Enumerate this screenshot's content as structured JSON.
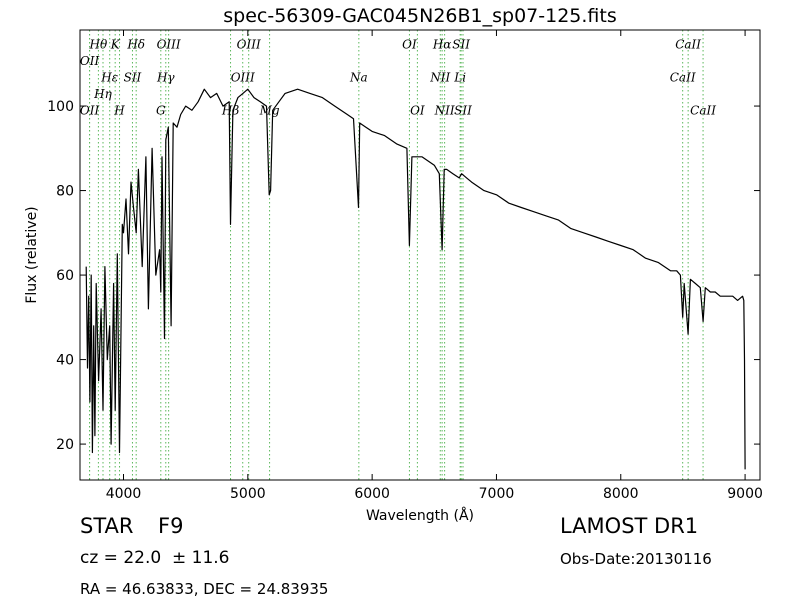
{
  "chart_data": {
    "type": "line",
    "title": "spec-56309-GAC045N26B1_sp07-125.fits",
    "xlabel": "Wavelength (Å)",
    "ylabel": "Flux (relative)",
    "xlim": [
      3650,
      9120
    ],
    "ylim": [
      11.5,
      118
    ],
    "xticks": [
      4000,
      5000,
      6000,
      7000,
      8000,
      9000
    ],
    "yticks": [
      20,
      40,
      60,
      80,
      100
    ],
    "grid": false,
    "legend": "none",
    "series": [
      {
        "color": "#000000",
        "x": [
          3700,
          3710,
          3720,
          3730,
          3740,
          3750,
          3760,
          3770,
          3780,
          3800,
          3820,
          3835,
          3850,
          3870,
          3889,
          3900,
          3920,
          3933,
          3950,
          3968,
          3990,
          4000,
          4020,
          4040,
          4060,
          4080,
          4102,
          4120,
          4150,
          4180,
          4200,
          4230,
          4260,
          4290,
          4300,
          4310,
          4330,
          4340,
          4360,
          4383,
          4400,
          4430,
          4460,
          4500,
          4550,
          4600,
          4650,
          4700,
          4750,
          4800,
          4850,
          4861,
          4880,
          4920,
          4960,
          5000,
          5050,
          5100,
          5150,
          5172,
          5183,
          5200,
          5250,
          5300,
          5400,
          5500,
          5600,
          5700,
          5800,
          5850,
          5890,
          5900,
          5950,
          6000,
          6100,
          6200,
          6280,
          6300,
          6320,
          6400,
          6450,
          6500,
          6540,
          6563,
          6580,
          6600,
          6650,
          6700,
          6720,
          6760,
          6800,
          6900,
          7000,
          7100,
          7200,
          7300,
          7400,
          7500,
          7600,
          7700,
          7800,
          7900,
          8000,
          8100,
          8200,
          8300,
          8400,
          8450,
          8480,
          8498,
          8510,
          8542,
          8560,
          8600,
          8640,
          8662,
          8680,
          8720,
          8760,
          8800,
          8850,
          8900,
          8940,
          8980,
          8990,
          8995,
          9000
        ],
        "y": [
          62,
          38,
          55,
          30,
          60,
          18,
          48,
          22,
          58,
          35,
          52,
          28,
          62,
          40,
          48,
          20,
          58,
          28,
          65,
          18,
          72,
          70,
          78,
          65,
          82,
          76,
          70,
          85,
          62,
          88,
          52,
          90,
          60,
          66,
          56,
          88,
          45,
          92,
          95,
          48,
          96,
          95,
          98,
          100,
          99,
          101,
          104,
          102,
          103,
          100,
          101,
          72,
          99,
          102,
          103,
          104,
          102,
          101,
          100,
          79,
          80,
          99,
          101,
          103,
          104,
          103,
          102,
          100,
          98,
          97,
          76,
          96,
          95,
          94,
          93,
          91,
          90,
          67,
          88,
          88,
          87,
          86,
          84,
          66,
          85,
          85,
          84,
          83,
          84,
          83,
          82,
          80,
          79,
          77,
          76,
          75,
          74,
          73,
          71,
          70,
          69,
          68,
          67,
          66,
          64,
          63,
          61,
          61,
          60,
          50,
          58,
          46,
          59,
          58,
          57,
          49,
          57,
          56,
          56,
          55,
          55,
          55,
          54,
          55,
          54,
          40,
          14
        ]
      }
    ],
    "lines": [
      {
        "wavelength": 3727,
        "label": "OII",
        "row": 2
      },
      {
        "wavelength": 3727,
        "label": "OII",
        "row": 5
      },
      {
        "wavelength": 3798,
        "label": "Hθ",
        "row": 1
      },
      {
        "wavelength": 3835,
        "label": "Hη",
        "row": 4
      },
      {
        "wavelength": 3889,
        "label": "Hε",
        "row": 3
      },
      {
        "wavelength": 3933,
        "label": "K",
        "row": 1
      },
      {
        "wavelength": 3968,
        "label": "H",
        "row": 5
      },
      {
        "wavelength": 4072,
        "label": "SII",
        "row": 3
      },
      {
        "wavelength": 4102,
        "label": "Hδ",
        "row": 1
      },
      {
        "wavelength": 4300,
        "label": "G",
        "row": 5
      },
      {
        "wavelength": 4340,
        "label": "Hγ",
        "row": 3
      },
      {
        "wavelength": 4363,
        "label": "OIII",
        "row": 1
      },
      {
        "wavelength": 4861,
        "label": "Hβ",
        "row": 5
      },
      {
        "wavelength": 4959,
        "label": "OIII",
        "row": 3
      },
      {
        "wavelength": 5007,
        "label": "OIII",
        "row": 1
      },
      {
        "wavelength": 5175,
        "label": "Mg",
        "row": 5
      },
      {
        "wavelength": 5893,
        "label": "Na",
        "row": 3
      },
      {
        "wavelength": 6300,
        "label": "OI",
        "row": 1
      },
      {
        "wavelength": 6364,
        "label": "OI",
        "row": 5
      },
      {
        "wavelength": 6548,
        "label": "NII",
        "row": 3
      },
      {
        "wavelength": 6563,
        "label": "Hα",
        "row": 1
      },
      {
        "wavelength": 6583,
        "label": "NII",
        "row": 5
      },
      {
        "wavelength": 6708,
        "label": "Li",
        "row": 3
      },
      {
        "wavelength": 6716,
        "label": "SII",
        "row": 1
      },
      {
        "wavelength": 6731,
        "label": "SII",
        "row": 5
      },
      {
        "wavelength": 8498,
        "label": "CaII",
        "row": 3
      },
      {
        "wavelength": 8542,
        "label": "CaII",
        "row": 1
      },
      {
        "wavelength": 8662,
        "label": "CaII",
        "row": 5
      }
    ]
  },
  "info": {
    "object_class": "STAR",
    "subclass": "F9",
    "survey": "LAMOST DR1",
    "redshift": "cz = 22.0  ± 11.6",
    "obs_date": "Obs-Date:20130116",
    "coords": "RA = 46.63833, DEC = 24.83935"
  },
  "colors": {
    "spectrum": "#000000",
    "line_markers": "#5cb85c"
  }
}
